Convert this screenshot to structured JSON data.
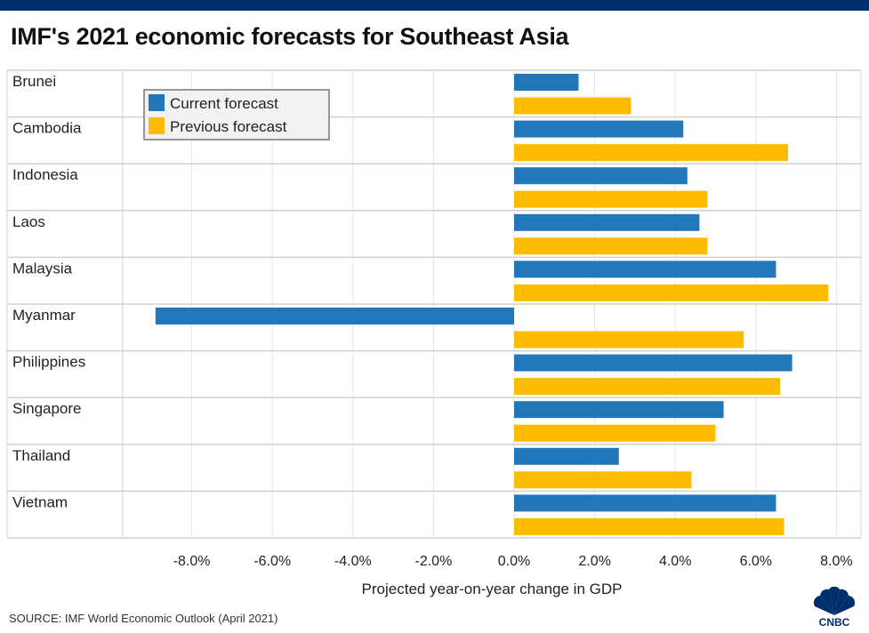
{
  "title": "IMF's 2021 economic forecasts for Southeast Asia",
  "source": "SOURCE: IMF World Economic Outlook  (April 2021)",
  "logo_text": "CNBC",
  "colors": {
    "current": "#2277b8",
    "previous": "#ffbb00",
    "header_bar": "#002d6b"
  },
  "chart_data": {
    "type": "bar",
    "orientation": "horizontal",
    "categories": [
      "Brunei",
      "Cambodia",
      "Indonesia",
      "Laos",
      "Malaysia",
      "Myanmar",
      "Philippines",
      "Singapore",
      "Thailand",
      "Vietnam"
    ],
    "series": [
      {
        "name": "Current forecast",
        "color": "#2277b8",
        "values": [
          1.6,
          4.2,
          4.3,
          4.6,
          6.5,
          -8.9,
          6.9,
          5.2,
          2.6,
          6.5
        ]
      },
      {
        "name": "Previous forecast",
        "color": "#ffbb00",
        "values": [
          2.9,
          6.8,
          4.8,
          4.8,
          7.8,
          5.7,
          6.6,
          5.0,
          4.4,
          6.7
        ]
      }
    ],
    "xlabel": "Projected year-on-year change in GDP",
    "xlim": [
      -8,
      8
    ],
    "xticks": [
      -8,
      -6,
      -4,
      -2,
      0,
      2,
      4,
      6,
      8
    ],
    "xtick_labels": [
      "-8.0%",
      "-6.0%",
      "-4.0%",
      "-2.0%",
      "0.0%",
      "2.0%",
      "4.0%",
      "6.0%",
      "8.0%"
    ],
    "grid": true,
    "legend": "top-left"
  }
}
